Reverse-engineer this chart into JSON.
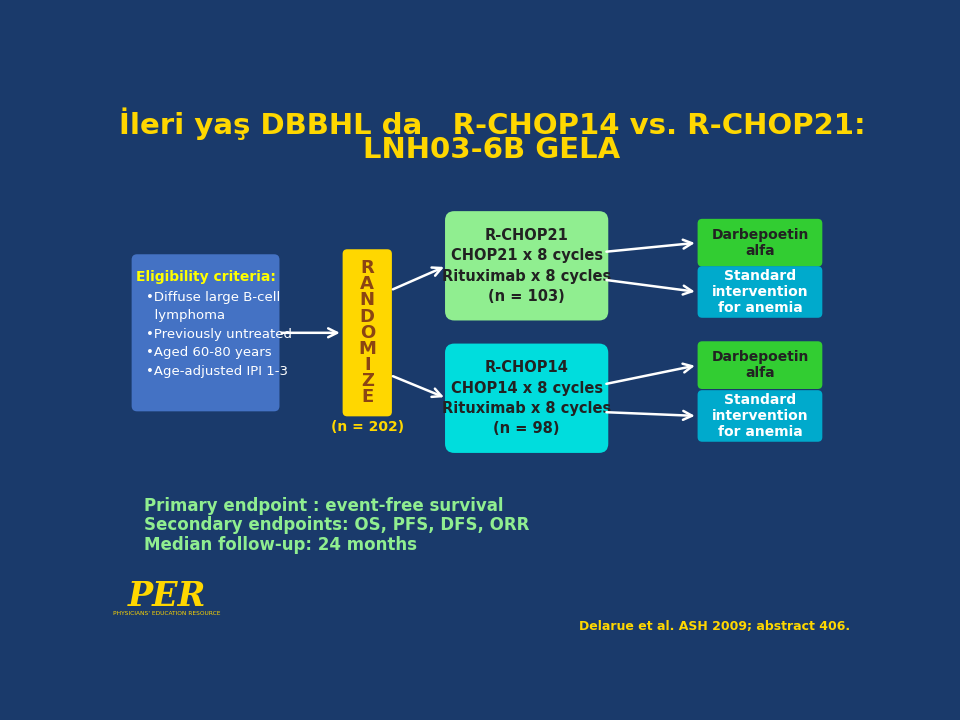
{
  "title_line1": "İleri yaş DBBHL da   R-CHOP14 vs. R-CHOP21:",
  "title_line2": "LNH03-6B GELA",
  "title_color": "#FFD700",
  "bg_color": "#1a3a6b",
  "eligibility_title": "Eligibility criteria:",
  "eligibility_box_color": "#4472C4",
  "eligibility_text_color": "#FFFFFF",
  "eligibility_bullet_color": "#FFFF00",
  "eligibility_bullets": [
    "•Diffuse large B-cell",
    "  lymphoma",
    "•Previously untreated",
    "•Aged 60-80 years",
    "•Age-adjusted IPI 1-3"
  ],
  "randomize_letters": [
    "R",
    "A",
    "N",
    "D",
    "O",
    "M",
    "I",
    "Z",
    "E"
  ],
  "randomize_box_color": "#FFD700",
  "randomize_text_color": "#8B4513",
  "randomize_n": "(n = 202)",
  "randomize_n_color": "#FFD700",
  "chop21_text": "R-CHOP21\nCHOP21 x 8 cycles\nRituximab x 8 cycles\n(n = 103)",
  "chop21_box_color": "#90EE90",
  "chop21_text_color": "#222222",
  "chop14_text": "R-CHOP14\nCHOP14 x 8 cycles\nRituximab x 8 cycles\n(n = 98)",
  "chop14_box_color": "#00DDDD",
  "chop14_text_color": "#222222",
  "darb_alfa_color": "#32CD32",
  "darb_alfa_text_color": "#222222",
  "standard_box_color": "#00AACC",
  "standard_text_color": "#FFFFFF",
  "bottom_text_color": "#90EE90",
  "bottom_line1": "Primary endpoint : event-free survival",
  "bottom_line2": "Secondary endpoints: OS, PFS, DFS, ORR",
  "bottom_line3": "Median follow-up: 24 months",
  "citation": "Delarue et al. ASH 2009; abstract 406.",
  "citation_color": "#FFD700",
  "per_color": "#FFD700"
}
